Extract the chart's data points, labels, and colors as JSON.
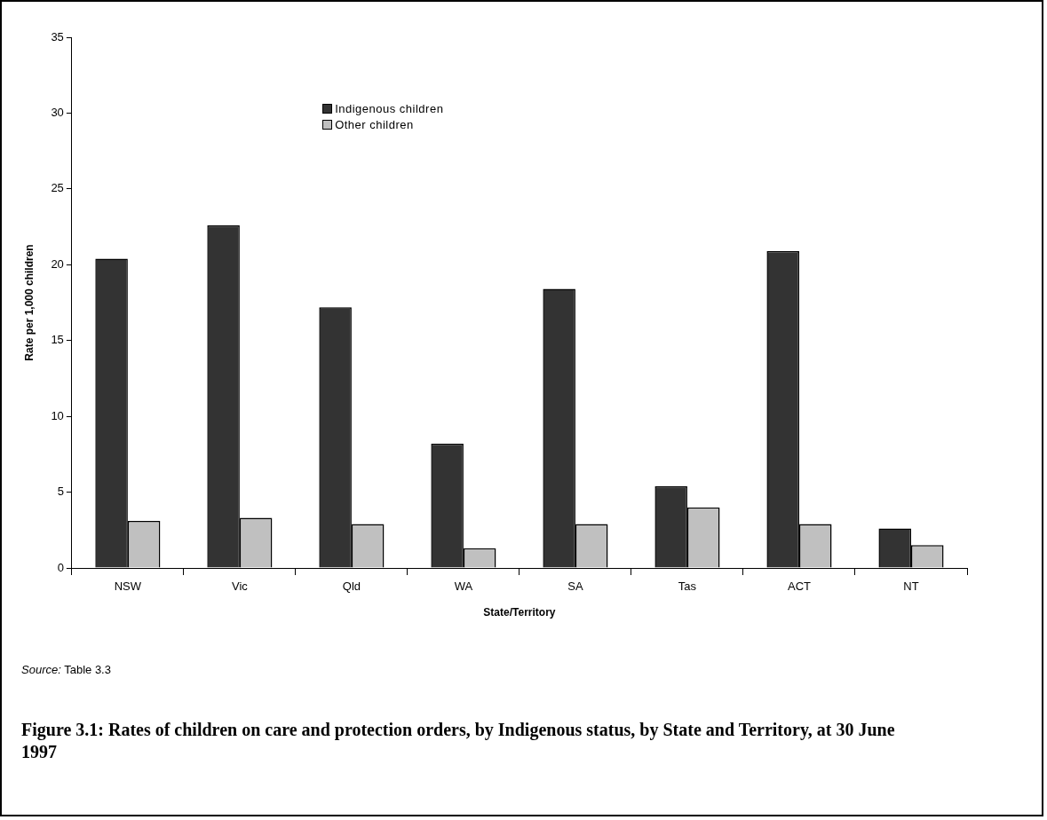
{
  "chart_data": {
    "type": "bar",
    "title": "Figure 3.1: Rates of children on care and protection orders, by Indigenous status, by State and Territory, at 30 June 1997",
    "xlabel": "State/Territory",
    "ylabel": "Rate per 1,000 children",
    "categories": [
      "NSW",
      "Vic",
      "Qld",
      "WA",
      "SA",
      "Tas",
      "ACT",
      "NT"
    ],
    "series": [
      {
        "name": "Indigenous children",
        "color": "#333333",
        "values": [
          20.4,
          22.6,
          17.2,
          8.2,
          18.4,
          5.4,
          20.9,
          2.6
        ]
      },
      {
        "name": "Other children",
        "color": "#c0c0c0",
        "values": [
          3.1,
          3.3,
          2.9,
          1.3,
          2.9,
          4.0,
          2.9,
          1.5
        ]
      }
    ],
    "ylim": [
      0,
      35
    ],
    "yticks": [
      0,
      5,
      10,
      15,
      20,
      25,
      30,
      35
    ],
    "grid": false,
    "legend": "top left",
    "annotations": [
      "Source: Table 3.3"
    ]
  }
}
